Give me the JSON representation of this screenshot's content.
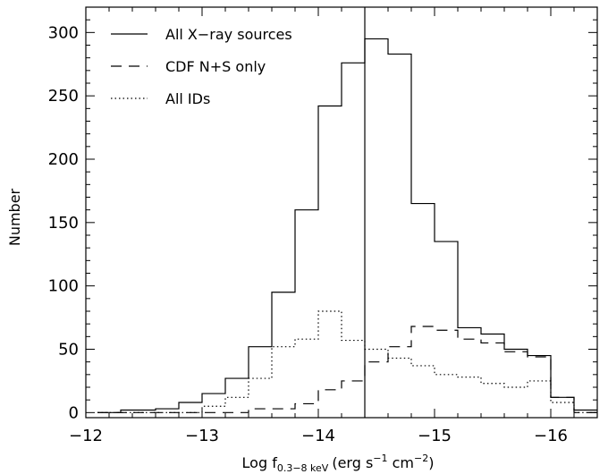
{
  "chart_data": {
    "type": "histogram",
    "xlabel_prefix": "Log f",
    "xlabel_sub": "0.3−8 keV",
    "xlabel_unit_open": "(erg s",
    "xlabel_exp1": "−1",
    "xlabel_mid": " cm",
    "xlabel_exp2": "−2",
    "xlabel_close": ")",
    "ylabel": "Number",
    "xlim": [
      -12,
      -16.4
    ],
    "ylim": [
      -4,
      320
    ],
    "xticks": [
      -12,
      -13,
      -14,
      -15,
      -16
    ],
    "xtick_labels": [
      "−12",
      "−13",
      "−14",
      "−15",
      "−16"
    ],
    "yticks": [
      0,
      50,
      100,
      150,
      200,
      250,
      300
    ],
    "ytick_labels": [
      "0",
      "50",
      "100",
      "150",
      "200",
      "250",
      "300"
    ],
    "vline_x": -14.4,
    "bin_edges": [
      -12.1,
      -12.2,
      -12.3,
      -12.4,
      -12.5,
      -12.6,
      -12.7,
      -12.8,
      -12.9,
      -13.0,
      -13.1,
      -13.2,
      -13.3,
      -13.4,
      -13.5,
      -13.6,
      -13.7,
      -13.8,
      -13.9,
      -14.0,
      -14.1,
      -14.2,
      -14.3,
      -14.4,
      -14.5,
      -14.6,
      -14.7,
      -14.8,
      -14.9,
      -15.0,
      -15.1,
      -15.2,
      -15.3,
      -15.4,
      -15.5,
      -15.6,
      -15.7,
      -15.8,
      -15.9,
      -16.0,
      -16.1,
      -16.2,
      -16.3,
      -16.4
    ],
    "series": [
      {
        "name": "All X−ray sources",
        "style": "solid",
        "values": [
          0,
          0,
          2,
          2,
          2,
          3,
          3,
          8,
          8,
          15,
          15,
          27,
          27,
          52,
          52,
          95,
          95,
          160,
          160,
          242,
          242,
          276,
          276,
          295,
          295,
          283,
          283,
          165,
          165,
          135,
          135,
          67,
          67,
          62,
          62,
          50,
          50,
          45,
          45,
          12,
          12,
          2,
          2
        ]
      },
      {
        "name": "CDF N+S only",
        "style": "dashed",
        "values": [
          0,
          0,
          0,
          0,
          0,
          0,
          0,
          0,
          0,
          0,
          0,
          0,
          0,
          3,
          3,
          3,
          3,
          7,
          7,
          18,
          18,
          25,
          25,
          40,
          40,
          52,
          52,
          68,
          68,
          65,
          65,
          58,
          58,
          55,
          55,
          48,
          48,
          44,
          44,
          12,
          12,
          0,
          0
        ]
      },
      {
        "name": "All IDs",
        "style": "dotted",
        "values": [
          0,
          0,
          0,
          0,
          0,
          0,
          0,
          0,
          0,
          5,
          5,
          12,
          12,
          27,
          27,
          52,
          52,
          58,
          58,
          80,
          80,
          57,
          57,
          50,
          50,
          43,
          43,
          37,
          37,
          30,
          30,
          28,
          28,
          23,
          23,
          20,
          20,
          25,
          25,
          8,
          8,
          0,
          0
        ]
      }
    ],
    "legend_position": "top-left"
  }
}
